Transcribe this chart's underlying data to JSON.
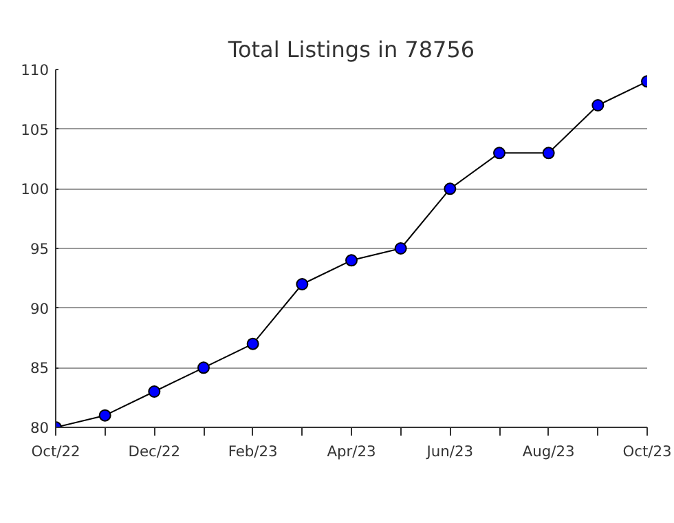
{
  "chart_data": {
    "type": "line",
    "title": "Total Listings in 78756",
    "categories": [
      "Oct/22",
      null,
      "Dec/22",
      null,
      "Feb/23",
      null,
      "Apr/23",
      null,
      "Jun/23",
      null,
      "Aug/23",
      null,
      "Oct/23"
    ],
    "series": [
      {
        "color": "#0000ff",
        "values": [
          80,
          81,
          83,
          85,
          87,
          92,
          94,
          95,
          100,
          103,
          103,
          107,
          109
        ]
      }
    ],
    "ylim": [
      80,
      110
    ],
    "yticks": [
      80,
      85,
      90,
      95,
      100,
      105,
      110
    ],
    "grid": "y",
    "marker": "circle",
    "line_style": "solid"
  }
}
